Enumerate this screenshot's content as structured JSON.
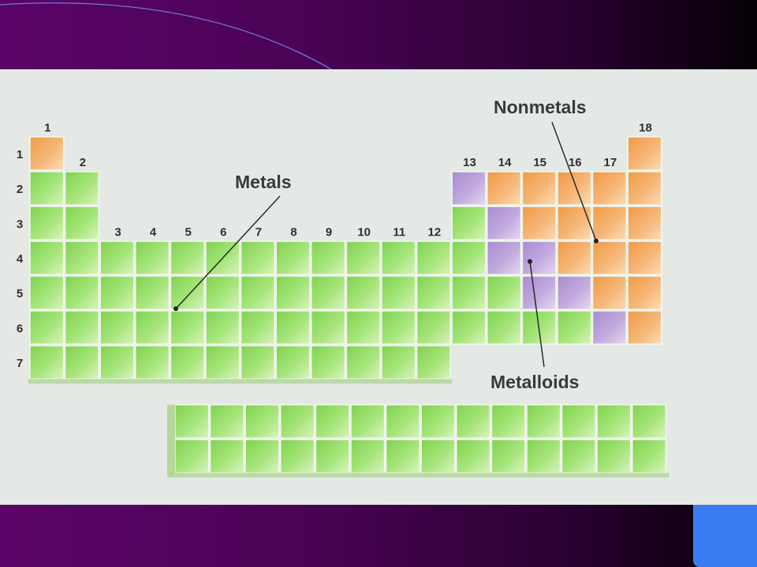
{
  "slide": {
    "accent_top": "#5b0468",
    "accent_corner": "#3c7cf2"
  },
  "diagram": {
    "subject": "periodic table classification",
    "group_numbers": [
      "1",
      "2",
      "3",
      "4",
      "5",
      "6",
      "7",
      "8",
      "9",
      "10",
      "11",
      "12",
      "13",
      "14",
      "15",
      "16",
      "17",
      "18"
    ],
    "period_numbers": [
      "1",
      "2",
      "3",
      "4",
      "5",
      "6",
      "7"
    ],
    "labels": {
      "metals": "Metals",
      "nonmetals": "Nonmetals",
      "metalloids": "Metalloids"
    },
    "colors": {
      "metal": "#8fdc63",
      "nonmetal": "#f4a85a",
      "metalloid": "#b79ad6",
      "background": "#e4e9e5"
    },
    "classes": {
      "nonmetal": [
        "1-1",
        "2-14",
        "2-15",
        "2-16",
        "2-17",
        "2-18",
        "3-15",
        "3-16",
        "3-17",
        "3-18",
        "4-16",
        "4-17",
        "4-18",
        "5-17",
        "5-18",
        "6-18",
        "1-18"
      ],
      "metalloid": [
        "2-13",
        "3-14",
        "4-14",
        "4-15",
        "5-15",
        "5-16",
        "6-17"
      ]
    }
  }
}
